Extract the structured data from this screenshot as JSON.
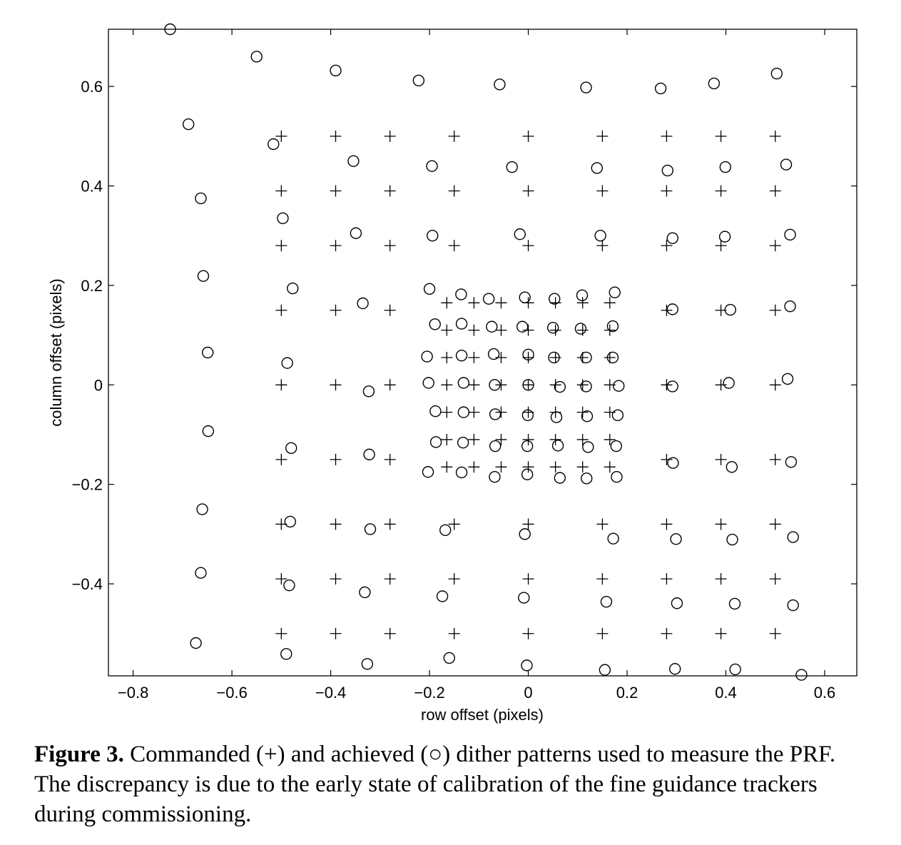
{
  "chart_data": {
    "type": "scatter",
    "xlabel": "row offset (pixels)",
    "ylabel": "column offset (pixels)",
    "xlim": [
      -0.85,
      0.665
    ],
    "ylim": [
      -0.585,
      0.715
    ],
    "x_ticks": [
      -0.8,
      -0.6,
      -0.4,
      -0.2,
      0,
      0.2,
      0.4,
      0.6
    ],
    "x_tick_labels": [
      "−0.8",
      "−0.6",
      "−0.4",
      "−0.2",
      "0",
      "0.2",
      "0.4",
      "0.6"
    ],
    "y_ticks": [
      -0.4,
      -0.2,
      0,
      0.2,
      0.4,
      0.6
    ],
    "y_tick_labels": [
      "−0.4",
      "−0.2",
      "0",
      "0.2",
      "0.4",
      "0.6"
    ],
    "grid": false,
    "commanded_outer_x": [
      -0.5,
      -0.39,
      -0.28,
      -0.15,
      0,
      0.15,
      0.28,
      0.39,
      0.5
    ],
    "commanded_outer_y": [
      0.5,
      0.39,
      0.28,
      0.15,
      0,
      -0.15,
      -0.28,
      -0.39,
      -0.5
    ],
    "commanded_inner_x": [
      -0.165,
      -0.11,
      -0.055,
      0,
      0.055,
      0.11,
      0.165
    ],
    "commanded_inner_y": [
      0.165,
      0.11,
      0.055,
      0,
      -0.055,
      -0.11,
      -0.165
    ],
    "series": [
      {
        "marker": "plus",
        "points": [
          [
            -0.5,
            0.5
          ],
          [
            -0.39,
            0.5
          ],
          [
            -0.28,
            0.5
          ],
          [
            -0.15,
            0.5
          ],
          [
            0,
            0.5
          ],
          [
            0.15,
            0.5
          ],
          [
            0.28,
            0.5
          ],
          [
            0.39,
            0.5
          ],
          [
            0.5,
            0.5
          ],
          [
            -0.5,
            0.39
          ],
          [
            -0.39,
            0.39
          ],
          [
            -0.28,
            0.39
          ],
          [
            -0.15,
            0.39
          ],
          [
            0,
            0.39
          ],
          [
            0.15,
            0.39
          ],
          [
            0.28,
            0.39
          ],
          [
            0.39,
            0.39
          ],
          [
            0.5,
            0.39
          ],
          [
            -0.5,
            0.28
          ],
          [
            -0.39,
            0.28
          ],
          [
            -0.28,
            0.28
          ],
          [
            -0.15,
            0.28
          ],
          [
            0,
            0.28
          ],
          [
            0.15,
            0.28
          ],
          [
            0.28,
            0.28
          ],
          [
            0.39,
            0.28
          ],
          [
            0.5,
            0.28
          ],
          [
            -0.5,
            0.15
          ],
          [
            -0.39,
            0.15
          ],
          [
            -0.28,
            0.15
          ],
          [
            0.28,
            0.15
          ],
          [
            0.39,
            0.15
          ],
          [
            0.5,
            0.15
          ],
          [
            -0.5,
            0
          ],
          [
            -0.39,
            0
          ],
          [
            -0.28,
            0
          ],
          [
            0.28,
            0
          ],
          [
            0.39,
            0
          ],
          [
            0.5,
            0
          ],
          [
            -0.5,
            -0.15
          ],
          [
            -0.39,
            -0.15
          ],
          [
            -0.28,
            -0.15
          ],
          [
            0.28,
            -0.15
          ],
          [
            0.39,
            -0.15
          ],
          [
            0.5,
            -0.15
          ],
          [
            -0.5,
            -0.28
          ],
          [
            -0.39,
            -0.28
          ],
          [
            -0.28,
            -0.28
          ],
          [
            -0.15,
            -0.28
          ],
          [
            0,
            -0.28
          ],
          [
            0.15,
            -0.28
          ],
          [
            0.28,
            -0.28
          ],
          [
            0.39,
            -0.28
          ],
          [
            0.5,
            -0.28
          ],
          [
            -0.5,
            -0.39
          ],
          [
            -0.39,
            -0.39
          ],
          [
            -0.28,
            -0.39
          ],
          [
            -0.15,
            -0.39
          ],
          [
            0,
            -0.39
          ],
          [
            0.15,
            -0.39
          ],
          [
            0.28,
            -0.39
          ],
          [
            0.39,
            -0.39
          ],
          [
            0.5,
            -0.39
          ],
          [
            -0.5,
            -0.5
          ],
          [
            -0.39,
            -0.5
          ],
          [
            -0.28,
            -0.5
          ],
          [
            -0.15,
            -0.5
          ],
          [
            0,
            -0.5
          ],
          [
            0.15,
            -0.5
          ],
          [
            0.28,
            -0.5
          ],
          [
            0.39,
            -0.5
          ],
          [
            0.5,
            -0.5
          ],
          [
            -0.165,
            0.165
          ],
          [
            -0.11,
            0.165
          ],
          [
            -0.055,
            0.165
          ],
          [
            0,
            0.165
          ],
          [
            0.055,
            0.165
          ],
          [
            0.11,
            0.165
          ],
          [
            0.165,
            0.165
          ],
          [
            -0.165,
            0.11
          ],
          [
            -0.11,
            0.11
          ],
          [
            -0.055,
            0.11
          ],
          [
            0,
            0.11
          ],
          [
            0.055,
            0.11
          ],
          [
            0.11,
            0.11
          ],
          [
            0.165,
            0.11
          ],
          [
            -0.165,
            0.055
          ],
          [
            -0.11,
            0.055
          ],
          [
            -0.055,
            0.055
          ],
          [
            0,
            0.055
          ],
          [
            0.055,
            0.055
          ],
          [
            0.11,
            0.055
          ],
          [
            0.165,
            0.055
          ],
          [
            -0.165,
            0
          ],
          [
            -0.11,
            0
          ],
          [
            -0.055,
            0
          ],
          [
            0,
            0
          ],
          [
            0.055,
            0
          ],
          [
            0.11,
            0
          ],
          [
            0.165,
            0
          ],
          [
            -0.165,
            -0.055
          ],
          [
            -0.11,
            -0.055
          ],
          [
            -0.055,
            -0.055
          ],
          [
            0,
            -0.055
          ],
          [
            0.055,
            -0.055
          ],
          [
            0.11,
            -0.055
          ],
          [
            0.165,
            -0.055
          ],
          [
            -0.165,
            -0.11
          ],
          [
            -0.11,
            -0.11
          ],
          [
            -0.055,
            -0.11
          ],
          [
            0,
            -0.11
          ],
          [
            0.055,
            -0.11
          ],
          [
            0.11,
            -0.11
          ],
          [
            0.165,
            -0.11
          ],
          [
            -0.165,
            -0.165
          ],
          [
            -0.11,
            -0.165
          ],
          [
            -0.055,
            -0.165
          ],
          [
            0,
            -0.165
          ],
          [
            0.055,
            -0.165
          ],
          [
            0.11,
            -0.165
          ],
          [
            0.165,
            -0.165
          ]
        ]
      },
      {
        "marker": "circle",
        "points": [
          [
            -0.725,
            0.715
          ],
          [
            -0.55,
            0.66
          ],
          [
            -0.39,
            0.632
          ],
          [
            -0.222,
            0.612
          ],
          [
            -0.058,
            0.604
          ],
          [
            0.117,
            0.598
          ],
          [
            0.268,
            0.596
          ],
          [
            0.376,
            0.606
          ],
          [
            0.503,
            0.626
          ],
          [
            -0.688,
            0.524
          ],
          [
            -0.516,
            0.484
          ],
          [
            -0.354,
            0.45
          ],
          [
            -0.195,
            0.44
          ],
          [
            -0.033,
            0.438
          ],
          [
            0.139,
            0.436
          ],
          [
            0.282,
            0.431
          ],
          [
            0.399,
            0.438
          ],
          [
            0.522,
            0.443
          ],
          [
            -0.663,
            0.375
          ],
          [
            -0.497,
            0.335
          ],
          [
            -0.349,
            0.305
          ],
          [
            -0.194,
            0.3
          ],
          [
            -0.017,
            0.303
          ],
          [
            0.146,
            0.3
          ],
          [
            0.292,
            0.295
          ],
          [
            0.398,
            0.298
          ],
          [
            0.53,
            0.302
          ],
          [
            -0.658,
            0.219
          ],
          [
            -0.477,
            0.194
          ],
          [
            -0.335,
            0.164
          ],
          [
            0.292,
            0.152
          ],
          [
            0.409,
            0.151
          ],
          [
            0.53,
            0.158
          ],
          [
            -0.649,
            0.065
          ],
          [
            -0.488,
            0.044
          ],
          [
            -0.323,
            -0.013
          ],
          [
            0.292,
            -0.003
          ],
          [
            0.406,
            0.004
          ],
          [
            0.525,
            0.012
          ],
          [
            -0.648,
            -0.093
          ],
          [
            -0.48,
            -0.127
          ],
          [
            -0.322,
            -0.14
          ],
          [
            0.293,
            -0.157
          ],
          [
            0.412,
            -0.165
          ],
          [
            0.532,
            -0.155
          ],
          [
            -0.66,
            -0.25
          ],
          [
            -0.482,
            -0.275
          ],
          [
            -0.32,
            -0.29
          ],
          [
            -0.168,
            -0.292
          ],
          [
            -0.007,
            -0.3
          ],
          [
            0.172,
            -0.309
          ],
          [
            0.299,
            -0.31
          ],
          [
            0.413,
            -0.311
          ],
          [
            0.536,
            -0.306
          ],
          [
            -0.663,
            -0.378
          ],
          [
            -0.484,
            -0.403
          ],
          [
            -0.331,
            -0.417
          ],
          [
            -0.174,
            -0.425
          ],
          [
            -0.009,
            -0.428
          ],
          [
            0.158,
            -0.436
          ],
          [
            0.301,
            -0.439
          ],
          [
            0.418,
            -0.44
          ],
          [
            0.536,
            -0.443
          ],
          [
            -0.673,
            -0.519
          ],
          [
            -0.49,
            -0.541
          ],
          [
            -0.326,
            -0.561
          ],
          [
            -0.16,
            -0.549
          ],
          [
            -0.003,
            -0.564
          ],
          [
            0.155,
            -0.573
          ],
          [
            0.297,
            -0.571
          ],
          [
            0.419,
            -0.572
          ],
          [
            0.553,
            -0.583
          ],
          [
            -0.2,
            0.193
          ],
          [
            -0.136,
            0.182
          ],
          [
            -0.08,
            0.173
          ],
          [
            -0.007,
            0.176
          ],
          [
            0.053,
            0.173
          ],
          [
            0.109,
            0.18
          ],
          [
            0.175,
            0.186
          ],
          [
            -0.189,
            0.122
          ],
          [
            -0.135,
            0.123
          ],
          [
            -0.074,
            0.117
          ],
          [
            -0.012,
            0.117
          ],
          [
            0.05,
            0.115
          ],
          [
            0.106,
            0.113
          ],
          [
            0.171,
            0.118
          ],
          [
            -0.205,
            0.057
          ],
          [
            -0.135,
            0.059
          ],
          [
            -0.07,
            0.062
          ],
          [
            0,
            0.061
          ],
          [
            0.052,
            0.055
          ],
          [
            0.117,
            0.055
          ],
          [
            0.171,
            0.055
          ],
          [
            -0.202,
            0.004
          ],
          [
            -0.131,
            0.004
          ],
          [
            -0.068,
            0
          ],
          [
            0,
            0
          ],
          [
            0.064,
            -0.004
          ],
          [
            0.117,
            -0.003
          ],
          [
            0.183,
            -0.002
          ],
          [
            -0.188,
            -0.053
          ],
          [
            -0.131,
            -0.055
          ],
          [
            -0.067,
            -0.059
          ],
          [
            -0.001,
            -0.061
          ],
          [
            0.057,
            -0.065
          ],
          [
            0.119,
            -0.063
          ],
          [
            0.181,
            -0.061
          ],
          [
            -0.187,
            -0.115
          ],
          [
            -0.132,
            -0.116
          ],
          [
            -0.067,
            -0.123
          ],
          [
            -0.002,
            -0.123
          ],
          [
            0.06,
            -0.122
          ],
          [
            0.121,
            -0.125
          ],
          [
            0.178,
            -0.123
          ],
          [
            -0.203,
            -0.175
          ],
          [
            -0.135,
            -0.176
          ],
          [
            -0.068,
            -0.185
          ],
          [
            -0.002,
            -0.18
          ],
          [
            0.064,
            -0.187
          ],
          [
            0.118,
            -0.188
          ],
          [
            0.179,
            -0.185
          ]
        ]
      }
    ]
  },
  "caption": {
    "label": "Figure 3.",
    "text": " Commanded (+) and achieved (○) dither patterns used to measure the PRF. The discrepancy is due to the early state of calibration of the fine guidance trackers during commissioning."
  }
}
